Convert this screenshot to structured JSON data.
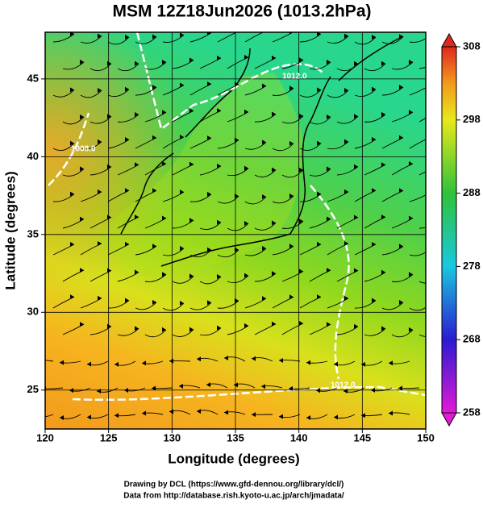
{
  "header": {
    "title": "MSM 12Z18Jun2026 (1013.2hPa)"
  },
  "x_axis": {
    "label": "Longitude (degrees)",
    "lim": [
      120,
      150
    ],
    "ticks": [
      120,
      125,
      130,
      135,
      140,
      145,
      150
    ]
  },
  "y_axis": {
    "label": "Latitude  (degrees)",
    "lim": [
      22.5,
      48
    ],
    "ticks": [
      25,
      30,
      35,
      40,
      45
    ]
  },
  "colorbar": {
    "lim": [
      258,
      308
    ],
    "ticks": [
      258,
      268,
      278,
      288,
      298,
      308
    ]
  },
  "contour_labels": [
    "1012.0",
    "1008.0",
    "1012.0"
  ],
  "credits": [
    "Drawing by DCL (https://www.gfd-dennou.org/library/dcl/)",
    "Data from http://database.rish.kyoto-u.ac.jp/arch/jmadata/"
  ]
}
